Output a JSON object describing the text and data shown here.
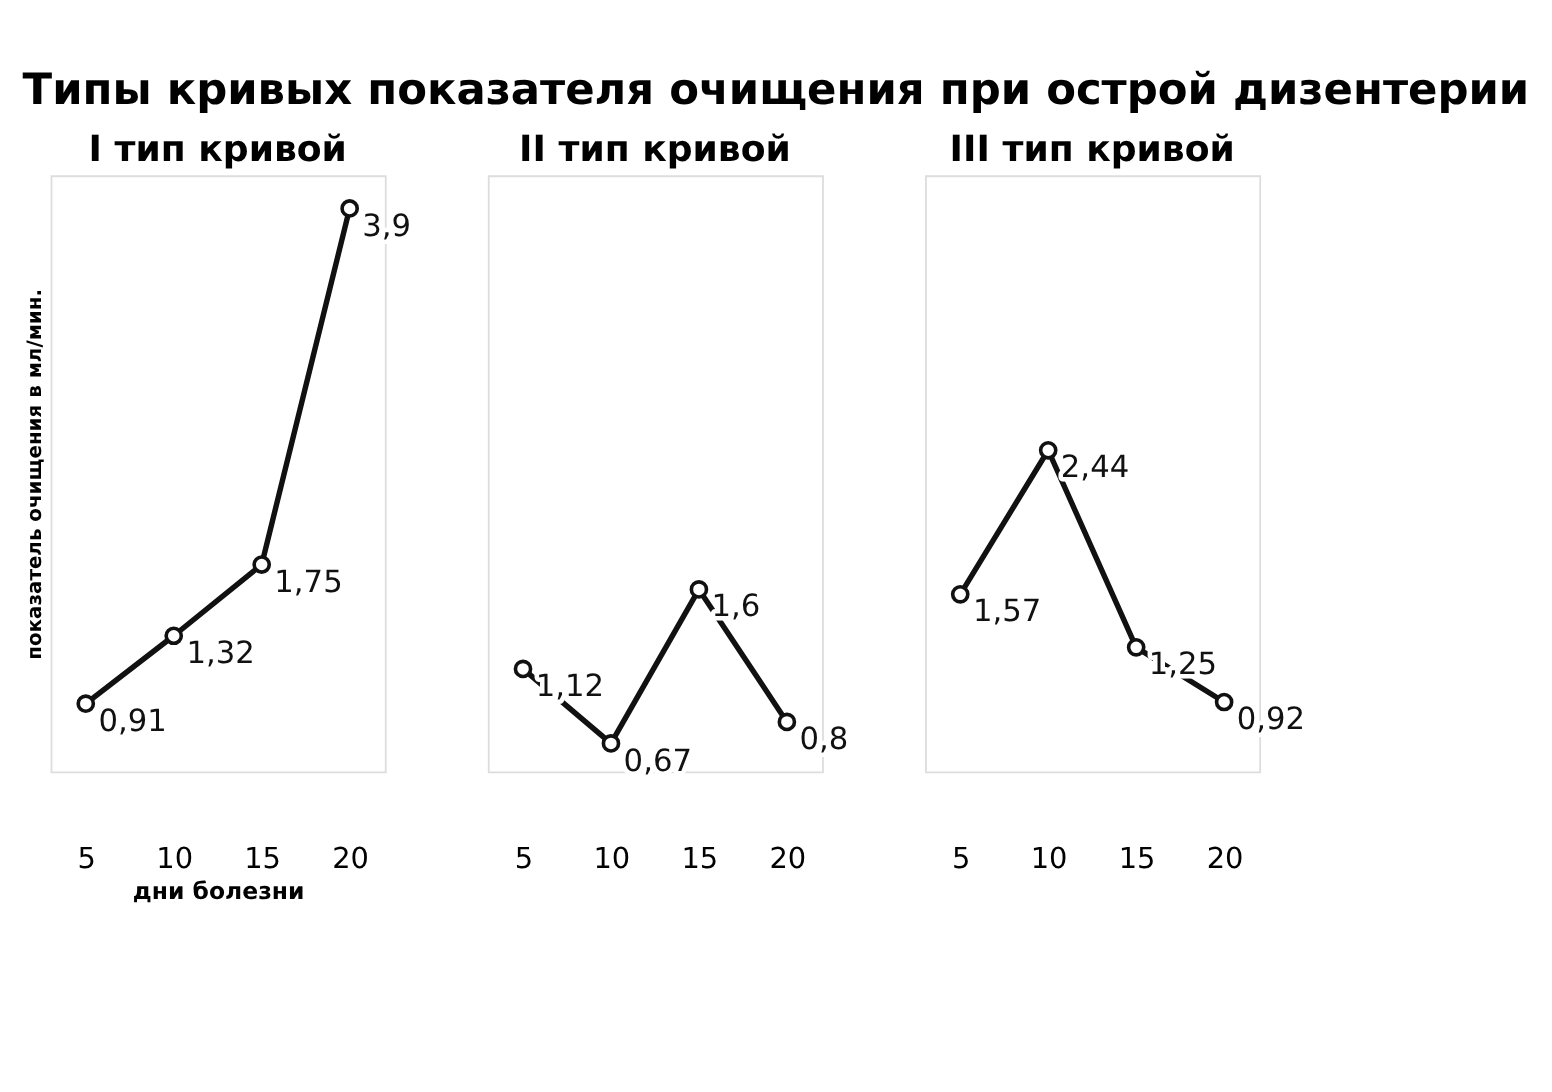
{
  "chart_data": [
    {
      "type": "line",
      "title": "Типы кривых показателя очищения при острой дизентерии",
      "subtitle": "I тип кривой",
      "xlabel": "дни болезни",
      "ylabel": "показатель очищения в мл/мин.",
      "x": [
        5,
        10,
        15,
        20
      ],
      "series": [
        {
          "color": "#111111",
          "values": [
            0.91,
            1.32,
            1.75,
            3.9
          ],
          "value_labels": [
            "0,91",
            "1,32",
            "1,75",
            "3,9"
          ]
        }
      ],
      "xlim": [
        3,
        22
      ],
      "xticks": [
        5,
        10,
        15,
        20
      ],
      "ylim": [
        0.5,
        4.1
      ],
      "tick_labels": "x",
      "marker": "circle",
      "line_style": "solid",
      "grid": false
    },
    {
      "type": "line",
      "subtitle": "II тип кривой",
      "x": [
        5,
        10,
        15,
        20
      ],
      "series": [
        {
          "color": "#111111",
          "values": [
            1.12,
            0.67,
            1.6,
            0.8
          ],
          "value_labels": [
            "1,12",
            "0,67",
            "1,6",
            "0,8"
          ]
        }
      ],
      "xlim": [
        3,
        22
      ],
      "xticks": [
        5,
        10,
        15,
        20
      ],
      "ylim": [
        0.5,
        4.1
      ],
      "tick_labels": "x",
      "marker": "circle",
      "line_style": "solid",
      "grid": false
    },
    {
      "type": "line",
      "subtitle": "III тип кривой",
      "x": [
        5,
        10,
        15,
        20
      ],
      "series": [
        {
          "color": "#111111",
          "values": [
            1.57,
            2.44,
            1.25,
            0.92
          ],
          "value_labels": [
            "1,57",
            "2,44",
            "1,25",
            "0,92"
          ]
        }
      ],
      "xlim": [
        3,
        22
      ],
      "xticks": [
        5,
        10,
        15,
        20
      ],
      "ylim": [
        0.5,
        4.1
      ],
      "tick_labels": "x",
      "marker": "circle",
      "line_style": "solid",
      "grid": false
    }
  ]
}
